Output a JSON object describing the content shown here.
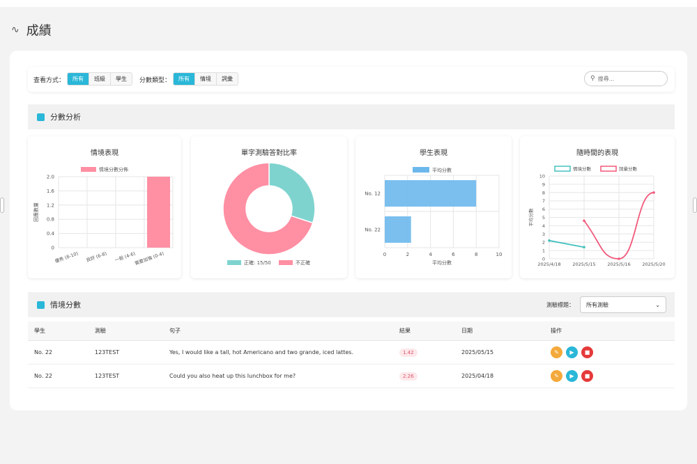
{
  "page": {
    "title": "成績",
    "icon": "activity-icon"
  },
  "filters": {
    "view_label": "查看方式：",
    "view_options": [
      "所有",
      "班級",
      "學生"
    ],
    "view_active": "所有",
    "score_label": "分數類型：",
    "score_options": [
      "所有",
      "情境",
      "詞彙"
    ],
    "score_active": "所有",
    "search_placeholder": "搜尋..."
  },
  "analysis": {
    "title": "分數分析",
    "icon": "bar-chart-icon"
  },
  "chart_data": [
    {
      "type": "bar",
      "title": "情境表現",
      "legend": [
        "情境分數分佈"
      ],
      "categories": [
        "優秀 (8-10)",
        "良好 (6-8)",
        "一般 (4-6)",
        "需要加強 (0-4)"
      ],
      "values": [
        0,
        0,
        0,
        2
      ],
      "ylabel": "回應數量",
      "ylim": [
        0,
        2.0
      ],
      "yticks": [
        "0",
        "0.4",
        "0.8",
        "1.2",
        "1.6",
        "2.0"
      ],
      "color": "#ff8fa3"
    },
    {
      "type": "pie",
      "title": "單字測驗答對比率",
      "labels": [
        "正確: 15/50",
        "不正確"
      ],
      "values": [
        15,
        35
      ],
      "colors": [
        "#7fd3cf",
        "#ff8fa3"
      ]
    },
    {
      "type": "bar",
      "orientation": "horizontal",
      "title": "學生表現",
      "legend": [
        "平均分數"
      ],
      "categories": [
        "No. 12",
        "No. 22"
      ],
      "values": [
        8,
        2.3
      ],
      "xlabel": "平均分數",
      "xlim": [
        0,
        10
      ],
      "xticks": [
        "0",
        "2",
        "4",
        "6",
        "8",
        "10"
      ],
      "color": "#6cb8ec"
    },
    {
      "type": "line",
      "title": "隨時間的表現",
      "legend": [
        "情境分數",
        "詞彙分數"
      ],
      "categories": [
        "2025/4/18",
        "2025/5/15",
        "2025/5/16",
        "2025/5/20"
      ],
      "ylabel": "平均分數",
      "ylim": [
        0,
        10
      ],
      "yticks": [
        "0",
        "1",
        "2",
        "3",
        "4",
        "5",
        "6",
        "7",
        "8",
        "9",
        "10"
      ],
      "series": [
        {
          "name": "情境分數",
          "x": [
            0,
            1
          ],
          "y": [
            2.2,
            1.4
          ],
          "color": "#45c1bd"
        },
        {
          "name": "詞彙分數",
          "x": [
            1,
            2,
            3
          ],
          "y": [
            4.6,
            0,
            8
          ],
          "color": "#f2587a"
        }
      ]
    }
  ],
  "scores_section": {
    "title": "情境分數",
    "icon": "clapperboard-icon",
    "select_label": "測驗標題：",
    "select_value": "所有測驗"
  },
  "table": {
    "headers": [
      "學生",
      "測驗",
      "句子",
      "結果",
      "日期",
      "操作"
    ],
    "rows": [
      {
        "student": "No. 22",
        "test": "123TEST",
        "sentence": "Yes, I would like a tall, hot Americano and two grande, iced lattes.",
        "result": "1.42",
        "date": "2025/05/15"
      },
      {
        "student": "No. 22",
        "test": "123TEST",
        "sentence": "Could you also heat up this lunchbox for me?",
        "result": "2.26",
        "date": "2025/04/18"
      }
    ]
  }
}
